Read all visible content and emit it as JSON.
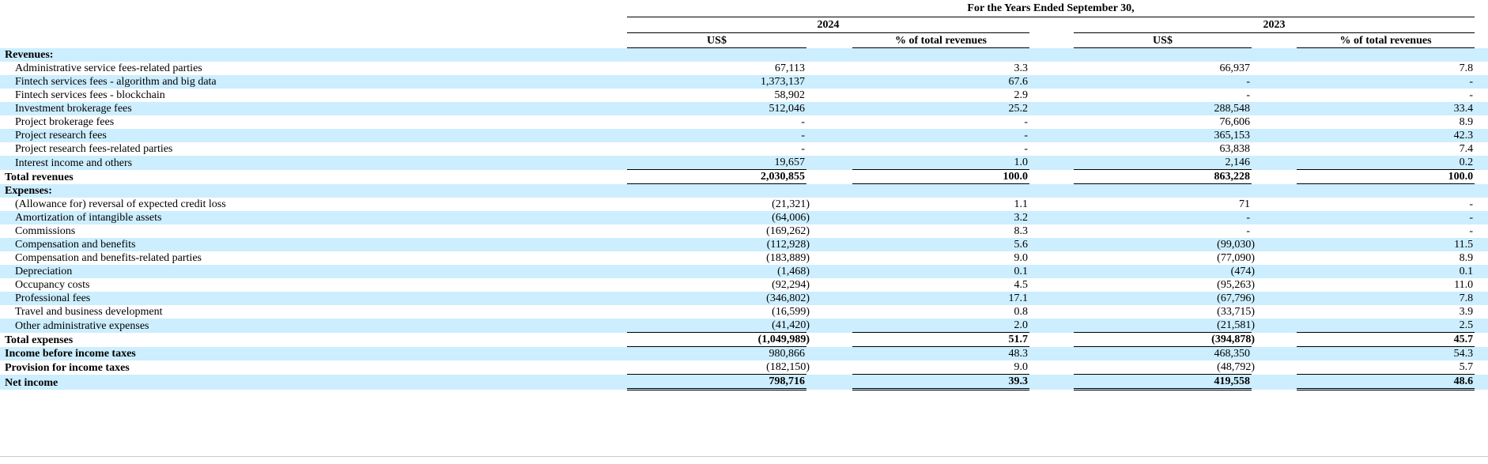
{
  "colors": {
    "row_stripe": "#cceeff",
    "rule": "#000000"
  },
  "table": {
    "title": "For the Years Ended September 30,",
    "year_groups": [
      {
        "label": "2024"
      },
      {
        "label": "2023"
      }
    ],
    "col_headers": {
      "amount": "US$",
      "percent": "% of total revenues"
    },
    "rows": [
      {
        "label": "Revenues:",
        "indent": false,
        "bold": true,
        "value_bold": false,
        "rule": null,
        "values": [
          "",
          "",
          "",
          ""
        ]
      },
      {
        "label": "Administrative service fees-related parties",
        "indent": true,
        "bold": false,
        "value_bold": false,
        "rule": null,
        "values": [
          "67,113",
          "3.3",
          "66,937",
          "7.8"
        ]
      },
      {
        "label": "Fintech services fees - algorithm and big data",
        "indent": true,
        "bold": false,
        "value_bold": false,
        "rule": null,
        "values": [
          "1,373,137",
          "67.6",
          "-",
          "-"
        ]
      },
      {
        "label": "Fintech services fees - blockchain",
        "indent": true,
        "bold": false,
        "value_bold": false,
        "rule": null,
        "values": [
          "58,902",
          "2.9",
          "-",
          "-"
        ]
      },
      {
        "label": "Investment brokerage fees",
        "indent": true,
        "bold": false,
        "value_bold": false,
        "rule": null,
        "values": [
          "512,046",
          "25.2",
          "288,548",
          "33.4"
        ]
      },
      {
        "label": "Project brokerage fees",
        "indent": true,
        "bold": false,
        "value_bold": false,
        "rule": null,
        "values": [
          "-",
          "-",
          "76,606",
          "8.9"
        ]
      },
      {
        "label": "Project research fees",
        "indent": true,
        "bold": false,
        "value_bold": false,
        "rule": null,
        "values": [
          "-",
          "-",
          "365,153",
          "42.3"
        ]
      },
      {
        "label": "Project research fees-related parties",
        "indent": true,
        "bold": false,
        "value_bold": false,
        "rule": null,
        "values": [
          "-",
          "-",
          "63,838",
          "7.4"
        ]
      },
      {
        "label": "Interest income and others",
        "indent": true,
        "bold": false,
        "value_bold": false,
        "rule": "single",
        "values": [
          "19,657",
          "1.0",
          "2,146",
          "0.2"
        ]
      },
      {
        "label": "Total revenues",
        "indent": false,
        "bold": true,
        "value_bold": true,
        "rule": "single",
        "values": [
          "2,030,855",
          "100.0",
          "863,228",
          "100.0"
        ]
      },
      {
        "label": "Expenses:",
        "indent": false,
        "bold": true,
        "value_bold": false,
        "rule": null,
        "values": [
          "",
          "",
          "",
          ""
        ]
      },
      {
        "label": "(Allowance for) reversal of expected credit loss",
        "indent": true,
        "bold": false,
        "value_bold": false,
        "rule": null,
        "values": [
          "(21,321)",
          "1.1",
          "71",
          "-"
        ]
      },
      {
        "label": "Amortization of intangible assets",
        "indent": true,
        "bold": false,
        "value_bold": false,
        "rule": null,
        "values": [
          "(64,006)",
          "3.2",
          "-",
          "-"
        ]
      },
      {
        "label": "Commissions",
        "indent": true,
        "bold": false,
        "value_bold": false,
        "rule": null,
        "values": [
          "(169,262)",
          "8.3",
          "-",
          "-"
        ]
      },
      {
        "label": "Compensation and benefits",
        "indent": true,
        "bold": false,
        "value_bold": false,
        "rule": null,
        "values": [
          "(112,928)",
          "5.6",
          "(99,030)",
          "11.5"
        ]
      },
      {
        "label": "Compensation and benefits-related parties",
        "indent": true,
        "bold": false,
        "value_bold": false,
        "rule": null,
        "values": [
          "(183,889)",
          "9.0",
          "(77,090)",
          "8.9"
        ]
      },
      {
        "label": "Depreciation",
        "indent": true,
        "bold": false,
        "value_bold": false,
        "rule": null,
        "values": [
          "(1,468)",
          "0.1",
          "(474)",
          "0.1"
        ]
      },
      {
        "label": "Occupancy costs",
        "indent": true,
        "bold": false,
        "value_bold": false,
        "rule": null,
        "values": [
          "(92,294)",
          "4.5",
          "(95,263)",
          "11.0"
        ]
      },
      {
        "label": "Professional fees",
        "indent": true,
        "bold": false,
        "value_bold": false,
        "rule": null,
        "values": [
          "(346,802)",
          "17.1",
          "(67,796)",
          "7.8"
        ]
      },
      {
        "label": "Travel and business development",
        "indent": true,
        "bold": false,
        "value_bold": false,
        "rule": null,
        "values": [
          "(16,599)",
          "0.8",
          "(33,715)",
          "3.9"
        ]
      },
      {
        "label": "Other administrative expenses",
        "indent": true,
        "bold": false,
        "value_bold": false,
        "rule": "single",
        "values": [
          "(41,420)",
          "2.0",
          "(21,581)",
          "2.5"
        ]
      },
      {
        "label": "Total expenses",
        "indent": false,
        "bold": true,
        "value_bold": true,
        "rule": "single",
        "values": [
          "(1,049,989)",
          "51.7",
          "(394,878)",
          "45.7"
        ]
      },
      {
        "label": "Income before income taxes",
        "indent": false,
        "bold": true,
        "value_bold": false,
        "rule": null,
        "values": [
          "980,866",
          "48.3",
          "468,350",
          "54.3"
        ]
      },
      {
        "label": "Provision for income taxes",
        "indent": false,
        "bold": true,
        "value_bold": false,
        "rule": "single",
        "values": [
          "(182,150)",
          "9.0",
          "(48,792)",
          "5.7"
        ]
      },
      {
        "label": "Net income",
        "indent": false,
        "bold": true,
        "value_bold": true,
        "rule": "double",
        "values": [
          "798,716",
          "39.3",
          "419,558",
          "48.6"
        ]
      }
    ]
  }
}
